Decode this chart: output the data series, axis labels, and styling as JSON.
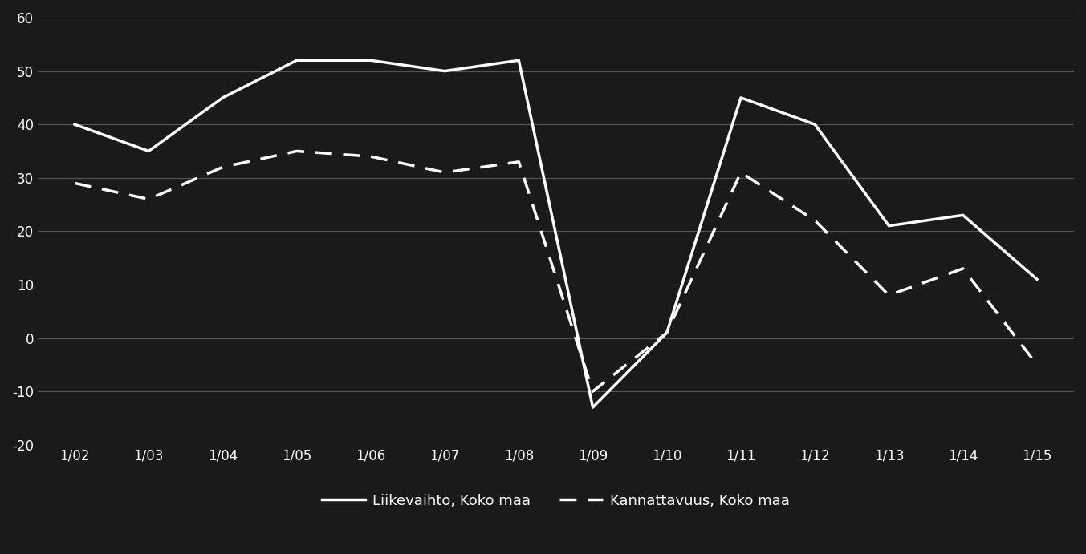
{
  "x_labels": [
    "1/02",
    "1/03",
    "1/04",
    "1/05",
    "1/06",
    "1/07",
    "1/08",
    "1/09",
    "1/10",
    "1/11",
    "1/12",
    "1/13",
    "1/14",
    "1/15"
  ],
  "liikevaihto": [
    40,
    35,
    45,
    52,
    52,
    50,
    52,
    -13,
    1,
    45,
    40,
    21,
    23,
    11
  ],
  "kannattavuus": [
    29,
    26,
    32,
    35,
    34,
    31,
    33,
    -10,
    1,
    31,
    22,
    8,
    13,
    -5
  ],
  "ylim": [
    -20,
    60
  ],
  "yticks": [
    -20,
    -10,
    0,
    10,
    20,
    30,
    40,
    50,
    60
  ],
  "background_color": "#1a1a1a",
  "line_color": "#ffffff",
  "grid_color": "#555555",
  "legend_solid": "Liikevaihto, Koko maa",
  "legend_dashed": "Kannattavuus, Koko maa",
  "linewidth": 2.5
}
